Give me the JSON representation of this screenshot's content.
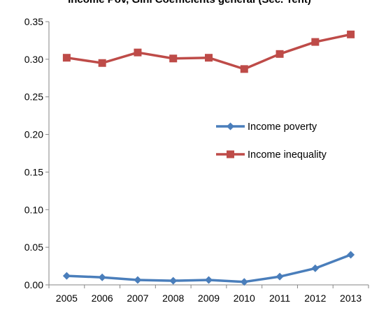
{
  "chart_data": {
    "type": "line",
    "title": "Income Pov, Gini Coefficients general (Sec. Tent)",
    "xlabel": "",
    "ylabel": "",
    "categories": [
      "2005",
      "2006",
      "2007",
      "2008",
      "2009",
      "2010",
      "2011",
      "2012",
      "2013"
    ],
    "ylim": [
      0,
      0.35
    ],
    "yticks": [
      "0.00",
      "0.05",
      "0.10",
      "0.15",
      "0.20",
      "0.25",
      "0.30",
      "0.35"
    ],
    "grid": false,
    "legend_position": "right-middle",
    "series": [
      {
        "name": "Income poverty",
        "color": "#4a7ebb",
        "marker": "diamond",
        "values": [
          0.012,
          0.01,
          0.0065,
          0.0055,
          0.0065,
          0.004,
          0.011,
          0.022,
          0.04
        ]
      },
      {
        "name": "Income inequality",
        "color": "#be4b48",
        "marker": "square",
        "values": [
          0.302,
          0.295,
          0.309,
          0.301,
          0.302,
          0.287,
          0.307,
          0.323,
          0.333
        ]
      }
    ]
  }
}
